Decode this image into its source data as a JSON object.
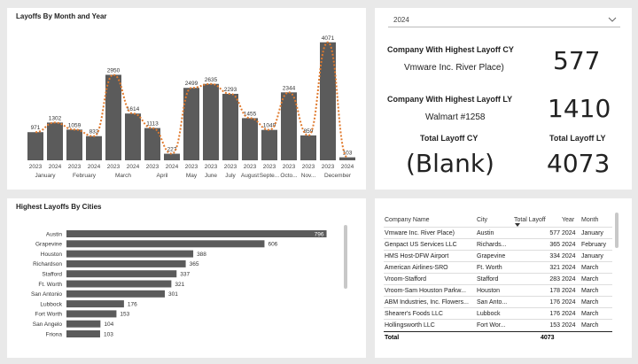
{
  "month_chart": {
    "title": "Layoffs By Month and Year",
    "chart_data": {
      "type": "bar",
      "title": "Layoffs By Month and Year",
      "bars": [
        {
          "year": "2023",
          "month": "January",
          "value": 971
        },
        {
          "year": "2024",
          "month": "January",
          "value": 1302
        },
        {
          "year": "2023",
          "month": "February",
          "value": 1059
        },
        {
          "year": "2024",
          "month": "February",
          "value": 833
        },
        {
          "year": "2023",
          "month": "March",
          "value": 2950
        },
        {
          "year": "2024",
          "month": "March",
          "value": 1614
        },
        {
          "year": "2023",
          "month": "April",
          "value": 1113
        },
        {
          "year": "2024",
          "month": "April",
          "value": 227
        },
        {
          "year": "2023",
          "month": "May",
          "value": 2499
        },
        {
          "year": "2023",
          "month": "June",
          "value": 2635
        },
        {
          "year": "2023",
          "month": "July",
          "value": 2293
        },
        {
          "year": "2023",
          "month": "August",
          "value": 1455
        },
        {
          "year": "2023",
          "month": "Septe...",
          "value": 1049
        },
        {
          "year": "2023",
          "month": "Octo...",
          "value": 2344
        },
        {
          "year": "2023",
          "month": "Nov...",
          "value": 859
        },
        {
          "year": "2023",
          "month": "December",
          "value": 4071
        },
        {
          "year": "2024",
          "month": "December",
          "value": 103
        }
      ],
      "month_groups": [
        {
          "label": "January",
          "start": 0,
          "end": 1
        },
        {
          "label": "February",
          "start": 2,
          "end": 3
        },
        {
          "label": "March",
          "start": 4,
          "end": 5
        },
        {
          "label": "April",
          "start": 6,
          "end": 7
        },
        {
          "label": "May",
          "start": 8,
          "end": 8
        },
        {
          "label": "June",
          "start": 9,
          "end": 9
        },
        {
          "label": "July",
          "start": 10,
          "end": 10
        },
        {
          "label": "August",
          "start": 11,
          "end": 11
        },
        {
          "label": "Septe...",
          "start": 12,
          "end": 12
        },
        {
          "label": "Octo...",
          "start": 13,
          "end": 13
        },
        {
          "label": "Nov...",
          "start": 14,
          "end": 14
        },
        {
          "label": "December",
          "start": 15,
          "end": 16
        }
      ],
      "ylim": [
        0,
        4400
      ],
      "bar_color": "#5b5b5b",
      "line_color": "#e07a2e",
      "trend": "dotted"
    }
  },
  "filter": {
    "year_value": "2024",
    "chevron": "chevron-down-icon"
  },
  "cards": {
    "cy_label": "Company With Highest Layoff CY",
    "cy_company": "Vmware Inc. River Place)",
    "cy_value": "577",
    "ly_label": "Company With Highest Layoff LY",
    "ly_company": "Walmart #1258",
    "ly_value": "1410",
    "total_cy_label": "Total Layoff CY",
    "total_cy_value": "(Blank)",
    "total_ly_label": "Total Layoff LY",
    "total_ly_value": "4073"
  },
  "city_chart": {
    "title": "Highest Layoffs By Cities",
    "chart_data": {
      "type": "bar",
      "orientation": "horizontal",
      "title": "Highest Layoffs By Cities",
      "categories": [
        "Austin",
        "Grapevine",
        "Houston",
        "Richardson",
        "Stafford",
        "Ft. Worth",
        "San Antonio",
        "Lubbock",
        "Fort Worth",
        "San Angelo",
        "Friona"
      ],
      "values": [
        796,
        606,
        388,
        365,
        337,
        321,
        301,
        176,
        153,
        104,
        103
      ],
      "xlim": [
        0,
        800
      ],
      "bar_color": "#5b5b5b"
    }
  },
  "table": {
    "headers": [
      "Company Name",
      "City",
      "Total Layoff",
      "Year",
      "Month"
    ],
    "rows": [
      [
        "Vmware Inc. River Place)",
        "Austin",
        "577",
        "2024",
        "January"
      ],
      [
        "Genpact US Services LLC",
        "Richards...",
        "365",
        "2024",
        "February"
      ],
      [
        "HMS Host-DFW Airport",
        "Grapevine",
        "334",
        "2024",
        "January"
      ],
      [
        "American Airlines-SRO",
        "Ft. Worth",
        "321",
        "2024",
        "March"
      ],
      [
        "Vroom-Stafford",
        "Stafford",
        "283",
        "2024",
        "March"
      ],
      [
        "Vroom-Sam Houston Parkw...",
        "Houston",
        "178",
        "2024",
        "March"
      ],
      [
        "ABM Industries, Inc. Flowers...",
        "San Anto...",
        "176",
        "2024",
        "March"
      ],
      [
        "Shearer's Foods LLC",
        "Lubbock",
        "176",
        "2024",
        "March"
      ],
      [
        "Hollingsworth LLC",
        "Fort Wor...",
        "153",
        "2024",
        "March"
      ]
    ],
    "total_label": "Total",
    "total_value": "4073",
    "sort_indicator": "sort-desc-icon"
  }
}
